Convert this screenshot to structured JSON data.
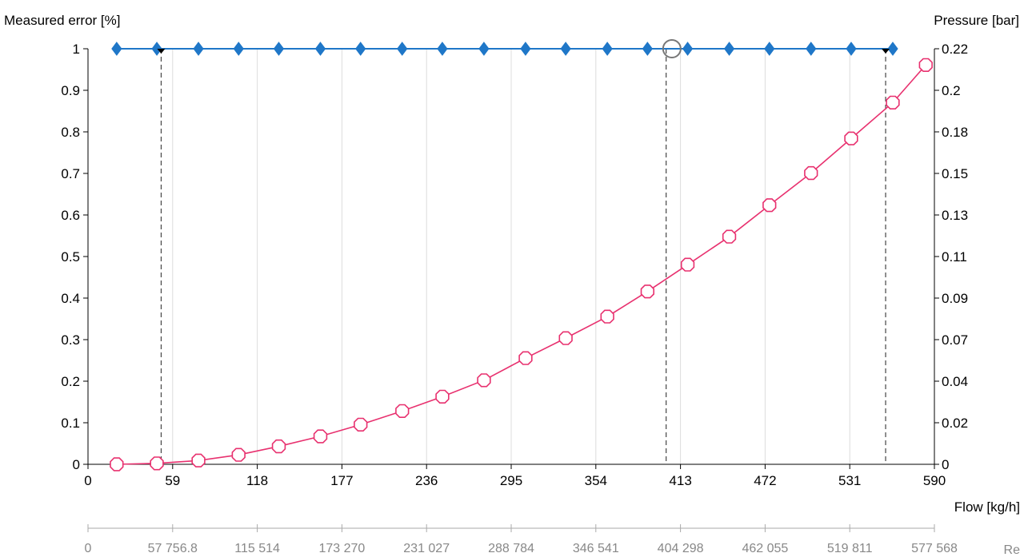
{
  "chart_data": {
    "type": "line",
    "title": "",
    "y_left_label": "Measured error [%]",
    "y_right_label": "Pressure [bar]",
    "x_label": "Flow [kg/h]",
    "x2_label": "Re",
    "xlim": [
      0,
      590
    ],
    "ylim_left": [
      0,
      1
    ],
    "ylim_right": [
      0,
      0.22
    ],
    "x_ticks": [
      0,
      59,
      118,
      177,
      236,
      295,
      354,
      413,
      472,
      531,
      590
    ],
    "x_tick_labels": [
      "0",
      "59",
      "118",
      "177",
      "236",
      "295",
      "354",
      "413",
      "472",
      "531",
      "590"
    ],
    "y_left_ticks": [
      0,
      0.1,
      0.2,
      0.3,
      0.4,
      0.5,
      0.6,
      0.7,
      0.8,
      0.9,
      1
    ],
    "y_left_tick_labels": [
      "0",
      "0.1",
      "0.2",
      "0.3",
      "0.4",
      "0.5",
      "0.6",
      "0.7",
      "0.8",
      "0.9",
      "1"
    ],
    "y_right_tick_labels": [
      "0",
      "0.02",
      "0.04",
      "0.07",
      "0.09",
      "0.11",
      "0.13",
      "0.15",
      "0.18",
      "0.2",
      "0.22"
    ],
    "re_tick_labels": [
      "0",
      "57 756.8",
      "115 514",
      "173 270",
      "231 027",
      "288 784",
      "346 541",
      "404 298",
      "462 055",
      "519 811",
      "577 568"
    ],
    "grid": "vertical",
    "series": [
      {
        "axis": "left",
        "color": "#1f77c8",
        "marker": "filled-diamond",
        "x": [
          20,
          48,
          77,
          105,
          133,
          162,
          190,
          219,
          247,
          276,
          305,
          333,
          362,
          390,
          418,
          447,
          475,
          504,
          532,
          561
        ],
        "y": [
          1,
          1,
          1,
          1,
          1,
          1,
          1,
          1,
          1,
          1,
          1,
          1,
          1,
          1,
          1,
          1,
          1,
          1,
          1,
          1
        ]
      },
      {
        "axis": "right",
        "color": "#e8316f",
        "marker": "open-octagon",
        "x": [
          20,
          48,
          77,
          105,
          133,
          162,
          190,
          219,
          247,
          276,
          305,
          333,
          362,
          390,
          418,
          447,
          475,
          504,
          532,
          561,
          584
        ],
        "y": [
          0,
          0.0005,
          0.002,
          0.005,
          0.0095,
          0.0148,
          0.021,
          0.0282,
          0.0358,
          0.0445,
          0.0562,
          0.0668,
          0.0782,
          0.0915,
          0.1057,
          0.1205,
          0.1372,
          0.1542,
          0.1725,
          0.1915,
          0.2114
        ]
      }
    ],
    "markers": {
      "vertical_lines_x": [
        51,
        403,
        556
      ],
      "cursor_circle": {
        "x": 407,
        "y": 1
      }
    }
  }
}
